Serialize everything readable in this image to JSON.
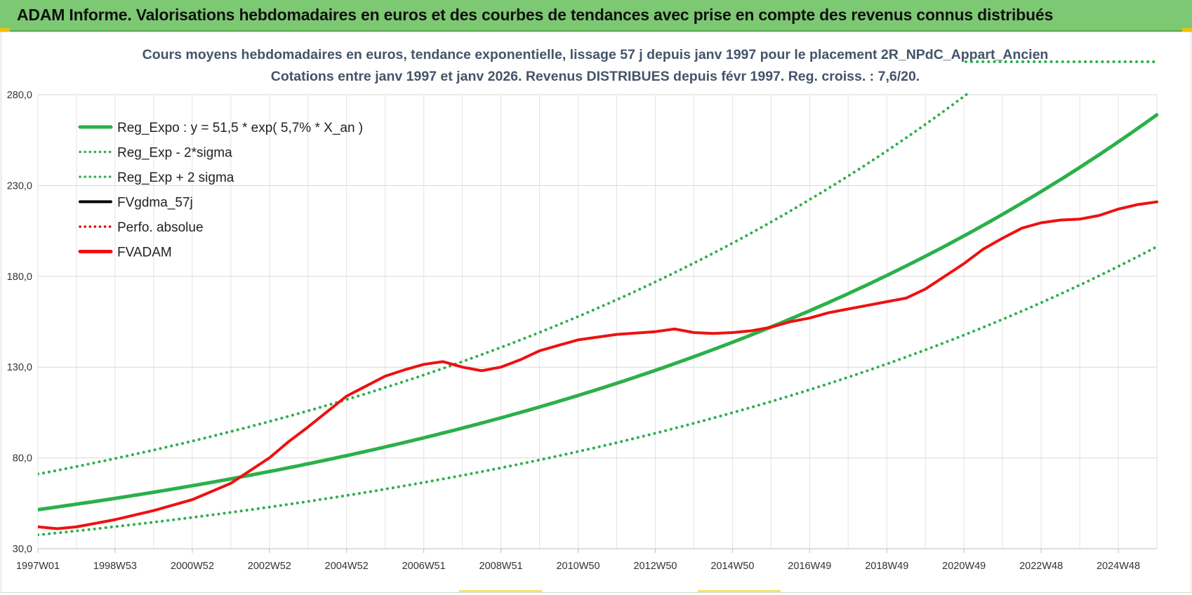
{
  "banner": {
    "title": "ADAM Informe. Valorisations hebdomadaires en euros et des courbes de tendances avec prise en compte des revenus connus distribués"
  },
  "chart_data": {
    "type": "line",
    "title_lines": [
      "Cours moyens hebdomadaires en euros, tendance exponentielle, lissage 57 j depuis janv 1997 pour le placement 2R_NPdC_Appart_Ancien",
      "Cotations entre janv 1997 et janv 2026. Revenus DISTRIBUES depuis févr 1997. Reg. croiss. : 7,6/20."
    ],
    "xlabel": "",
    "ylabel": "",
    "x_tick_labels": [
      "1997W01",
      "1998W53",
      "2000W52",
      "2002W52",
      "2004W52",
      "2006W51",
      "2008W51",
      "2010W50",
      "2012W50",
      "2014W50",
      "2016W49",
      "2018W49",
      "2020W49",
      "2022W48",
      "2024W48"
    ],
    "x_tick_years": [
      1997.0,
      1999.0,
      2001.0,
      2003.0,
      2005.0,
      2007.0,
      2009.0,
      2011.0,
      2013.0,
      2015.0,
      2017.0,
      2019.0,
      2021.0,
      2023.0,
      2025.0
    ],
    "x_range": [
      1997.0,
      2026.0
    ],
    "ylim": [
      30,
      280
    ],
    "y_ticks": [
      30,
      80,
      130,
      180,
      230,
      280
    ],
    "y_tick_labels": [
      "30,0",
      "80,0",
      "130,0",
      "180,0",
      "230,0",
      "280,0"
    ],
    "grid": true,
    "legend_position": "top-left",
    "regression": {
      "a": 51.5,
      "rate": 0.057,
      "sigma_factor_low": 0.73,
      "sigma_factor_high": 1.38
    },
    "series": [
      {
        "name": "Reg_Expo : y = 51,5 * exp( 5,7% *  X_an )",
        "style": "solid",
        "color": "#2bb04a",
        "x": [
          1997,
          2000,
          2003,
          2006,
          2009,
          2012,
          2015,
          2018,
          2021,
          2024,
          2026
        ],
        "y": [
          51.5,
          61.0,
          72.5,
          86.0,
          102.0,
          121.0,
          143.5,
          170.5,
          202.0,
          240.0,
          268.5
        ]
      },
      {
        "name": "Reg_Exp - 2*sigma",
        "style": "dotted",
        "color": "#2bb04a",
        "x": [
          1997,
          2000,
          2003,
          2006,
          2009,
          2012,
          2015,
          2018,
          2021,
          2024,
          2026
        ],
        "y": [
          37.5,
          44.5,
          52.8,
          62.6,
          74.4,
          88.3,
          104.8,
          124.4,
          147.6,
          175.2,
          196.0
        ]
      },
      {
        "name": "Reg_Exp + 2 sigma",
        "style": "dotted",
        "color": "#2bb04a",
        "x": [
          1997,
          2000,
          2003,
          2006,
          2009,
          2012,
          2015,
          2018,
          2020.0,
          2021.0,
          2026
        ],
        "y": [
          71.0,
          84.3,
          100.0,
          118.7,
          140.9,
          167.2,
          198.4,
          235.4,
          264.2,
          280.2,
          300.0
        ]
      },
      {
        "name": "FVgdma_57j",
        "style": "solid",
        "color": "#000000",
        "x": [],
        "y": []
      },
      {
        "name": "Perfo. absolue",
        "style": "dotted",
        "color": "#e00000",
        "x": [],
        "y": []
      },
      {
        "name": "FVADAM",
        "style": "solid",
        "color": "#ee1111",
        "x": [
          1997,
          1997.5,
          1998,
          1999,
          2000,
          2001,
          2002,
          2003,
          2003.5,
          2004,
          2005,
          2006,
          2006.5,
          2007,
          2007.5,
          2008,
          2008.5,
          2009,
          2009.5,
          2010,
          2010.5,
          2011,
          2012,
          2013,
          2013.5,
          2014,
          2014.5,
          2015,
          2015.5,
          2016,
          2016.5,
          2017,
          2017.5,
          2018,
          2018.5,
          2019,
          2019.5,
          2020,
          2020.5,
          2021,
          2021.5,
          2022,
          2022.5,
          2023,
          2023.5,
          2024,
          2024.5,
          2025,
          2025.5,
          2026
        ],
        "y": [
          42.0,
          41.0,
          42.0,
          46.0,
          51.0,
          57.0,
          66.0,
          80.0,
          89.0,
          97.0,
          114.0,
          125.0,
          128.5,
          131.5,
          133.0,
          130.0,
          128.0,
          130.0,
          134.0,
          139.0,
          142.0,
          145.0,
          148.0,
          149.5,
          151.0,
          149.0,
          148.5,
          149.0,
          150.0,
          152.0,
          155.0,
          157.0,
          160.0,
          162.0,
          164.0,
          166.0,
          168.0,
          173.0,
          180.0,
          187.0,
          195.0,
          201.0,
          206.5,
          209.5,
          211.0,
          211.5,
          213.5,
          217.0,
          219.5,
          221.0
        ]
      }
    ]
  }
}
